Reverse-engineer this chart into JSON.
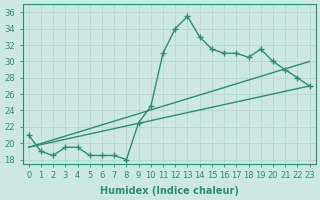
{
  "x": [
    0,
    1,
    2,
    3,
    4,
    5,
    6,
    7,
    8,
    9,
    10,
    11,
    12,
    13,
    14,
    15,
    16,
    17,
    18,
    19,
    20,
    21,
    22,
    23
  ],
  "y_main": [
    21,
    19,
    18.5,
    19.5,
    19.5,
    18.5,
    18.5,
    18.5,
    18,
    22.5,
    24.5,
    31,
    34,
    35.5,
    33,
    31.5,
    31,
    31,
    30.5,
    31.5,
    30,
    29,
    28,
    27
  ],
  "line1_x": [
    0,
    23
  ],
  "line1_y": [
    19.5,
    30.0
  ],
  "line2_x": [
    0,
    23
  ],
  "line2_y": [
    19.5,
    27.0
  ],
  "color": "#2e8b74",
  "bg_color": "#cde8e0",
  "grid_color": "#b0d4cc",
  "xlabel": "Humidex (Indice chaleur)",
  "ylabel_ticks": [
    18,
    20,
    22,
    24,
    26,
    28,
    30,
    32,
    34,
    36
  ],
  "ylim": [
    17.5,
    37
  ],
  "xlim": [
    -0.5,
    23.5
  ],
  "marker": "+",
  "markersize": 5,
  "linewidth": 1.0,
  "tick_fontsize": 6,
  "label_fontsize": 7
}
